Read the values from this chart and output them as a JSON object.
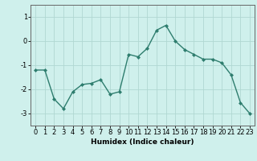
{
  "x": [
    0,
    1,
    2,
    3,
    4,
    5,
    6,
    7,
    8,
    9,
    10,
    11,
    12,
    13,
    14,
    15,
    16,
    17,
    18,
    19,
    20,
    21,
    22,
    23
  ],
  "y": [
    -1.2,
    -1.2,
    -2.4,
    -2.8,
    -2.1,
    -1.8,
    -1.75,
    -1.6,
    -2.2,
    -2.1,
    -0.55,
    -0.65,
    -0.3,
    0.45,
    0.65,
    0.0,
    -0.35,
    -0.55,
    -0.75,
    -0.75,
    -0.9,
    -1.4,
    -2.55,
    -3.0
  ],
  "line_color": "#2e7d6e",
  "marker": "D",
  "marker_size": 2.0,
  "bg_color": "#cff0ec",
  "grid_color": "#b0d8d2",
  "axis_color": "#666666",
  "xlabel": "Humidex (Indice chaleur)",
  "ylim": [
    -3.5,
    1.5
  ],
  "yticks": [
    -3,
    -2,
    -1,
    0,
    1
  ],
  "xlim": [
    -0.5,
    23.5
  ],
  "xticks": [
    0,
    1,
    2,
    3,
    4,
    5,
    6,
    7,
    8,
    9,
    10,
    11,
    12,
    13,
    14,
    15,
    16,
    17,
    18,
    19,
    20,
    21,
    22,
    23
  ],
  "xlabel_fontsize": 6.5,
  "tick_fontsize": 6.0,
  "line_width": 1.0
}
